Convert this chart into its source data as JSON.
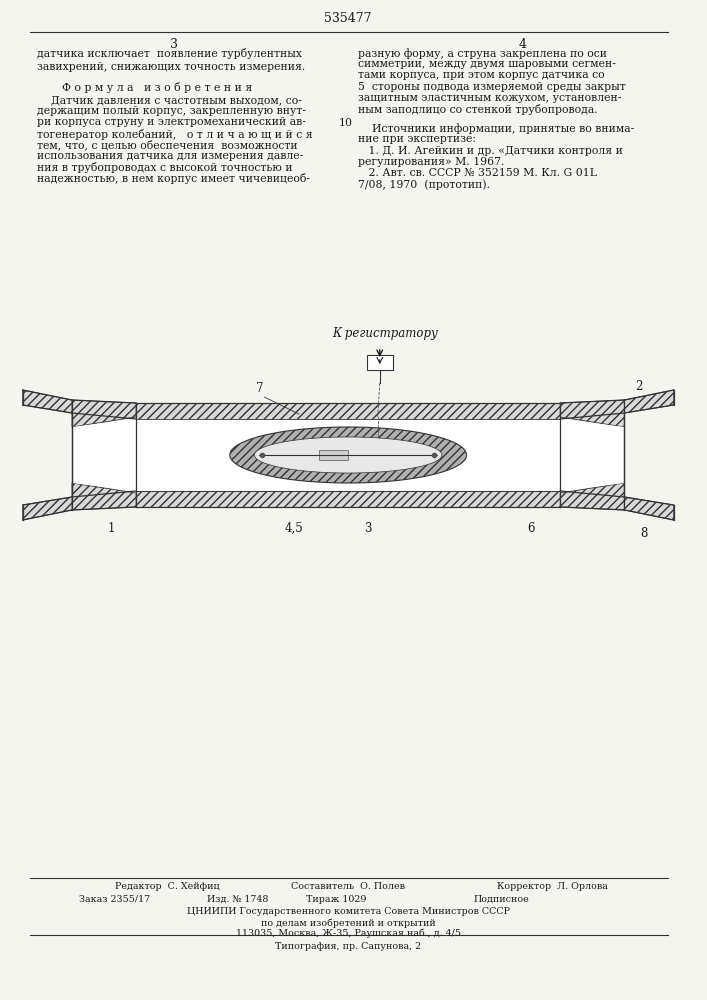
{
  "bg_color": "#f5f5f0",
  "patent_number": "535477",
  "page_left": "3",
  "page_right": "4",
  "top_text_left": "датчика исключает  появление турбулентных\nзавихрений, снижающих точность измерения.",
  "formula_title": "Ф о р м у л а   и з о б р е т е н и я",
  "formula_text": "    Датчик давления с частотным выходом, со-\nдержащим полый корпус, закрепленную внут-\nри корпуса струну и электромеханический ав-\nтогенератор колебаний,   о т л и ч а ю щ и й с я\nтем, что, с целью обеспечения  возможности\nиспользования датчика для измерения давле-\nния в трубопроводах с высокой точностью и\nнадежностью, в нем корпус имеет чичевицеоб-",
  "top_text_right_line1": "разную форму, а струна закреплена по оси",
  "top_text_right_line2": "симметрии, между двумя шаровыми сегмен-",
  "top_text_right_line3": "тами корпуса, при этом корпус датчика со",
  "top_text_right_line4": "5  стороны подвода измеряемой среды закрыт",
  "top_text_right_line5": "защитным эластичным кожухом, установлен-",
  "top_text_right_line6": "ным заподлицо со стенкой трубопровода.",
  "sources_title": "    Источники информации, принятые во внима-",
  "sources_line2": "ние при экспертизе:",
  "source1": "   1. Д. И. Агейкин и др. «Датчики контроля и",
  "source2": "регулирования» М. 1967.",
  "source3": "   2. Авт. св. СССР № 352159 М. Кл. G 01L",
  "source4": "7/08, 1970  (прототип).",
  "line10": "10",
  "registrator_label": "К регистратору",
  "bottom_editor": "Редактор  С. Хейфиц",
  "bottom_compiler": "Составитель  О. Полев",
  "bottom_corrector": "Корректор  Л. Орлова",
  "bottom_order": "Заказ 2355/17",
  "bottom_izd": "Изд. № 1748",
  "bottom_tirazh": "Тираж 1029",
  "bottom_podpisnoe": "Подписное",
  "bottom_cniip": "ЦНИИПИ Государственного комитета Совета Министров СССР",
  "bottom_cniip2": "по делам изобретений и открытий",
  "bottom_addr": "113035, Москва, Ж-35, Раушская наб., д. 4/5",
  "bottom_tip": "Типография, пр. Сапунова, 2",
  "text_color": "#1a1a1a",
  "line_color": "#333333"
}
